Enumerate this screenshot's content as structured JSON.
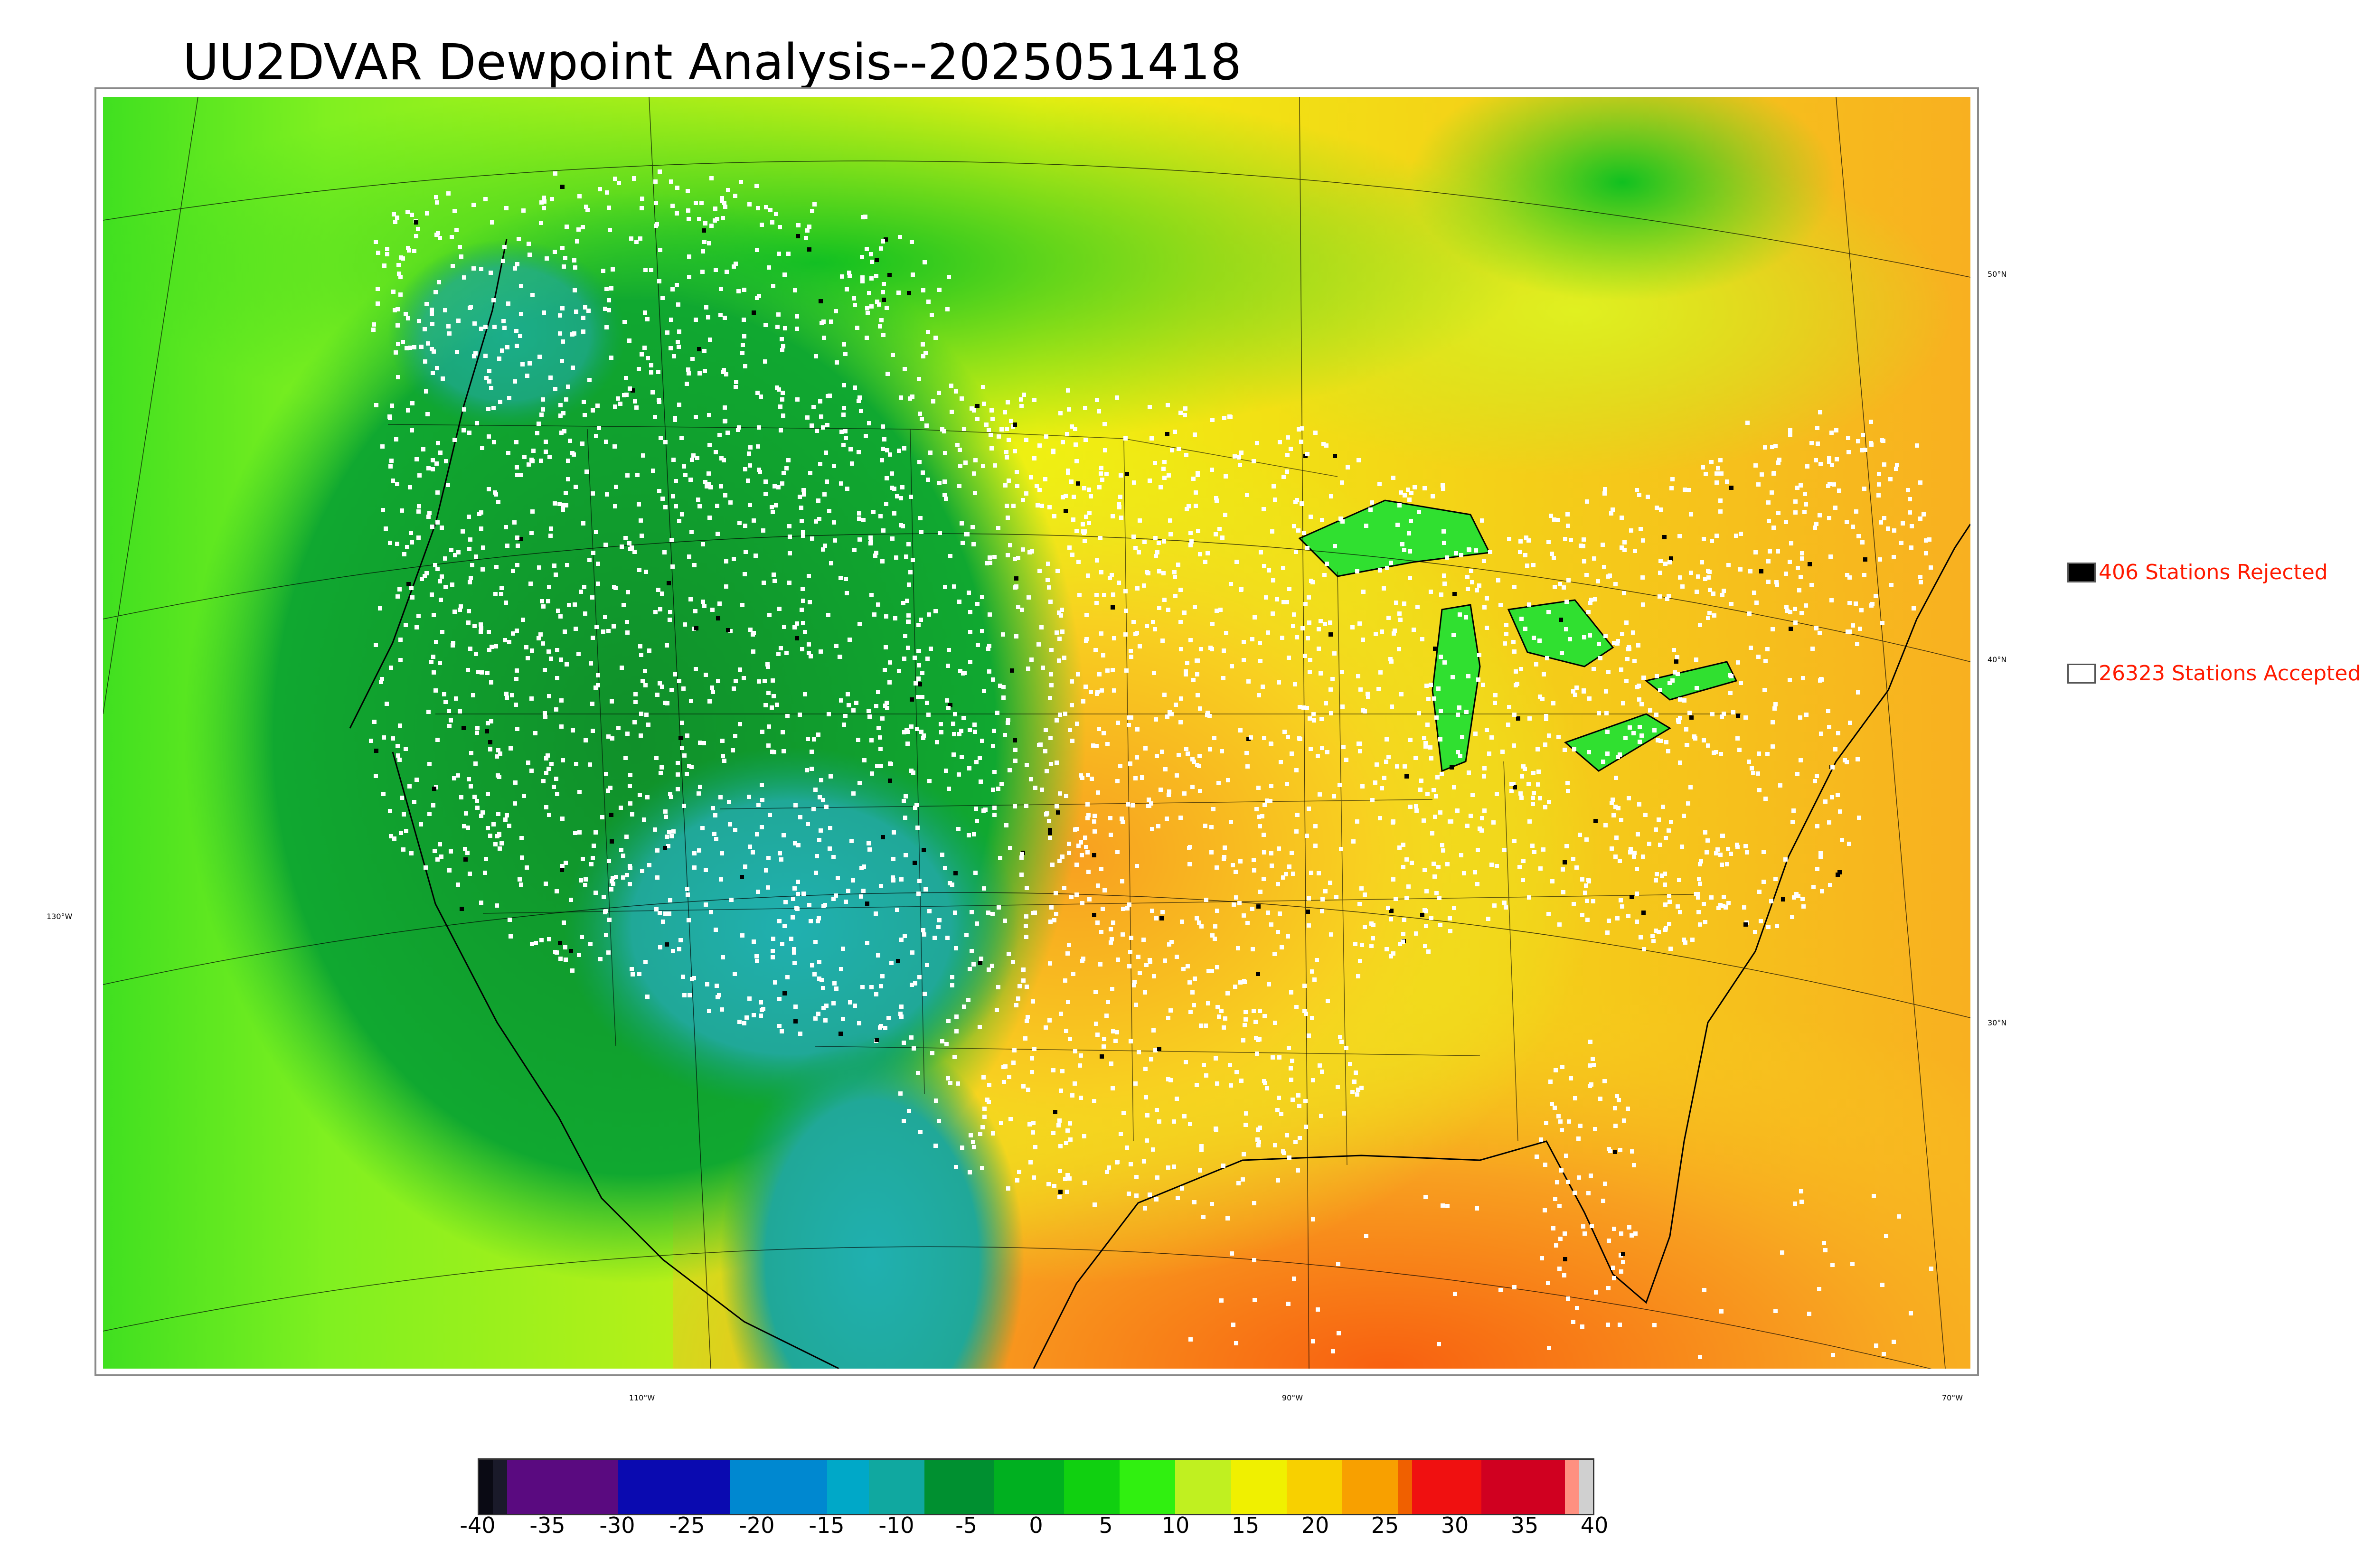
{
  "title": "UU2DVAR Dewpoint Analysis--2025051418",
  "legend": {
    "rejected": {
      "count_label": "406 Stations Rejected",
      "swatch_color": "#000000"
    },
    "accepted": {
      "count_label": "26323 Stations Accepted",
      "swatch_color": "#ffffff"
    }
  },
  "map_labels": {
    "lat": [
      "50°N",
      "40°N",
      "30°N"
    ],
    "lon": [
      "130°W",
      "110°W",
      "90°W",
      "70°W"
    ]
  },
  "colorbar": {
    "ticks": [
      "-40",
      "-35",
      "-30",
      "-25",
      "-20",
      "-15",
      "-10",
      "-5",
      "0",
      "5",
      "10",
      "15",
      "20",
      "25",
      "30",
      "35",
      "40"
    ],
    "colors": [
      "#0a0a14",
      "#1a1a2a",
      "#5a0a80",
      "#5a0a80",
      "#0a0ab0",
      "#0a0ab0",
      "#0088d0",
      "#0088d0",
      "#00a8c8",
      "#10a8a0",
      "#009030",
      "#00b020",
      "#10d010",
      "#30f010",
      "#c0f020",
      "#f0f000",
      "#f8d000",
      "#f8a000",
      "#f06000",
      "#f01010",
      "#f01010",
      "#d00020",
      "#d00020",
      "#ff9080",
      "#d0d0d0"
    ],
    "color_weights": [
      1,
      1,
      3,
      5,
      4,
      4,
      3,
      4,
      3,
      4,
      5,
      5,
      4,
      4,
      4,
      4,
      4,
      4,
      1,
      3,
      2,
      3,
      3,
      1,
      1
    ]
  },
  "map_colors": {
    "frame": "#8a8a8a",
    "ocean_gulf": "#f8a020",
    "ocean_pacific": "#a8f020",
    "west_dry": "#10a030",
    "southwest_teal": "#20a8a0",
    "east_moist": "#f8e020",
    "canada": "#20d020",
    "lakes": "#30e030",
    "station_accepted": "#ffffff",
    "station_rejected": "#000000"
  }
}
